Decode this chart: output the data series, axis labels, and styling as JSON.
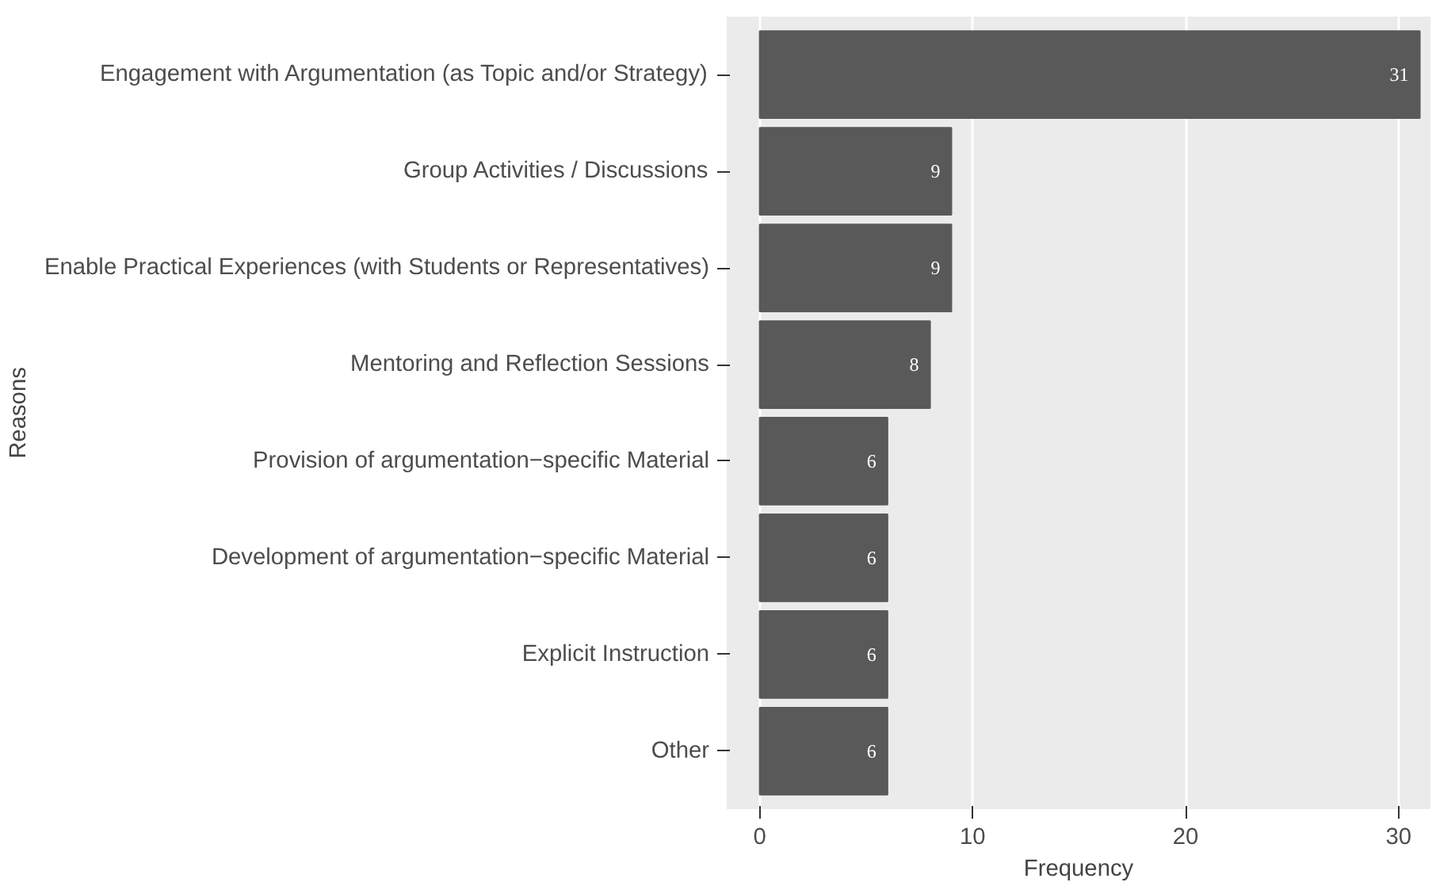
{
  "chart_data": {
    "type": "bar",
    "orientation": "horizontal",
    "xlabel": "Frequency",
    "ylabel": "Reasons",
    "categories": [
      "Engagement with Argumentation (as Topic and/or Strategy)",
      "Group Activities / Discussions",
      "Enable Practical Experiences (with Students or Representatives)",
      "Mentoring and Reflection Sessions",
      "Provision of argumentation−specific Material",
      "Development of argumentation−specific Material",
      "Explicit Instruction",
      "Other"
    ],
    "values": [
      31,
      9,
      9,
      8,
      6,
      6,
      6,
      6
    ],
    "color": "#595959",
    "xlim": [
      -1.55,
      31.5
    ],
    "xticks": [
      0,
      10,
      20,
      30
    ],
    "grid": "x",
    "data_labels": true
  }
}
